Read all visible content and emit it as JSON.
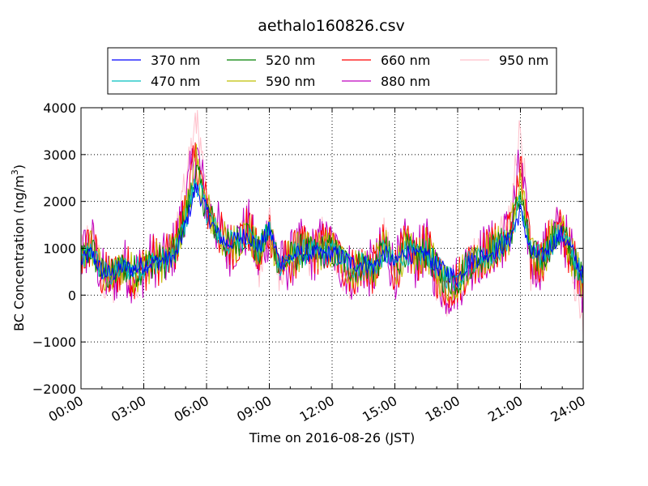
{
  "chart_data": {
    "type": "line",
    "title": "aethalo160826.csv",
    "xlabel": "Time on 2016-08-26 (JST)",
    "ylabel": "BC Concentration (ng/m",
    "ylabel_sup": "3",
    "ylabel_end": ")",
    "xlim": [
      "00:00",
      "24:00"
    ],
    "ylim": [
      -2000,
      4000
    ],
    "xticks": [
      "00:00",
      "03:00",
      "06:00",
      "09:00",
      "12:00",
      "15:00",
      "18:00",
      "21:00",
      "24:00"
    ],
    "yticks": [
      "4000",
      "3000",
      "2000",
      "1000",
      "0",
      "−1000",
      "−2000"
    ],
    "grid": true,
    "legend_position": "top",
    "series": [
      {
        "name": "370 nm",
        "color": "#0000ff"
      },
      {
        "name": "470 nm",
        "color": "#00bfbf"
      },
      {
        "name": "520 nm",
        "color": "#008000"
      },
      {
        "name": "590 nm",
        "color": "#bfbf00"
      },
      {
        "name": "660 nm",
        "color": "#ff0000"
      },
      {
        "name": "880 nm",
        "color": "#bf00bf"
      },
      {
        "name": "950 nm",
        "color": "#ffc0cb"
      }
    ],
    "x": [
      "00:00",
      "00:30",
      "01:00",
      "01:30",
      "02:00",
      "02:30",
      "03:00",
      "03:30",
      "04:00",
      "04:30",
      "05:00",
      "05:30",
      "06:00",
      "06:30",
      "07:00",
      "07:30",
      "08:00",
      "08:30",
      "09:00",
      "09:30",
      "10:00",
      "10:30",
      "11:00",
      "11:30",
      "12:00",
      "12:30",
      "13:00",
      "13:30",
      "14:00",
      "14:30",
      "15:00",
      "15:30",
      "16:00",
      "16:30",
      "17:00",
      "17:30",
      "18:00",
      "18:30",
      "19:00",
      "19:30",
      "20:00",
      "20:30",
      "21:00",
      "21:30",
      "22:00",
      "22:30",
      "23:00",
      "23:30",
      "24:00"
    ],
    "values_370": [
      700,
      900,
      500,
      450,
      600,
      550,
      650,
      700,
      750,
      800,
      1500,
      2300,
      1800,
      1300,
      1100,
      1200,
      1300,
      1000,
      1400,
      700,
      800,
      900,
      900,
      850,
      900,
      800,
      650,
      700,
      600,
      900,
      650,
      950,
      800,
      900,
      600,
      500,
      350,
      700,
      800,
      900,
      1000,
      1200,
      1800,
      900,
      800,
      1100,
      1300,
      900,
      400
    ],
    "values_950": [
      900,
      1400,
      300,
      200,
      700,
      300,
      500,
      900,
      600,
      1300,
      2400,
      3900,
      2000,
      1600,
      900,
      1100,
      1600,
      300,
      1500,
      400,
      700,
      1100,
      800,
      1300,
      1100,
      500,
      300,
      600,
      400,
      1300,
      400,
      1100,
      700,
      1200,
      300,
      -300,
      200,
      600,
      900,
      1000,
      1200,
      1600,
      3800,
      500,
      700,
      1400,
      1500,
      500,
      -500
    ]
  }
}
